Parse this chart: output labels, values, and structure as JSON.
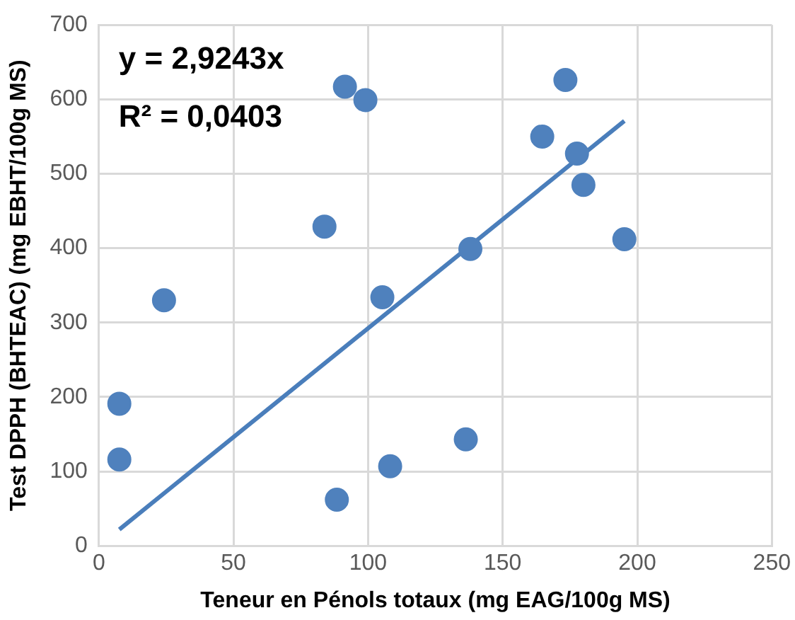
{
  "chart_data": {
    "type": "scatter",
    "xlabel": "Teneur en Pénols totaux (mg EAG/100g MS)",
    "ylabel": "Test DPPH (BHTEAC) (mg EBHT/100g MS)",
    "annotations": [
      "y = 2,9243x",
      "R² = 0,0403"
    ],
    "series": [
      {
        "type": "scatter",
        "marker": "circle",
        "color": "#4f81bd",
        "x": [
          7.6,
          7.6,
          24.2,
          83.8,
          91.4,
          99,
          105.3,
          88.4,
          108.2,
          136.3,
          138,
          173.3,
          164.7,
          177.6,
          180,
          195.2
        ],
        "values": [
          191,
          116,
          330,
          429,
          617,
          599,
          334,
          62,
          107,
          143,
          399,
          626,
          550,
          527,
          485,
          412
        ]
      },
      {
        "type": "line",
        "marker": "none",
        "color": "#4a7ebb",
        "x": [
          7.6,
          195.2
        ],
        "values": [
          22,
          571
        ]
      }
    ],
    "xlim": [
      0,
      250
    ],
    "xticks": [
      0,
      50,
      100,
      150,
      200,
      250
    ],
    "ylim": [
      0,
      700
    ],
    "yticks": [
      0,
      100,
      200,
      300,
      400,
      500,
      600,
      700
    ],
    "grid": true,
    "legend": false
  }
}
